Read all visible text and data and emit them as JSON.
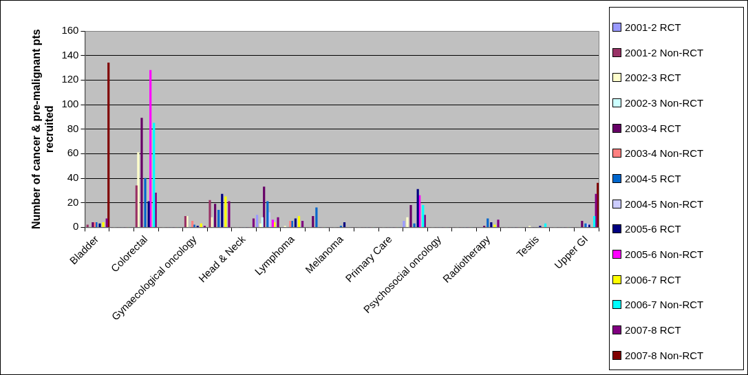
{
  "chart_data": {
    "type": "bar",
    "ylabel": "Number of cancer & pre-malignant pts recruited",
    "categories": [
      "Bladder",
      null,
      "Colorectal",
      null,
      "Gynaecological oncology",
      null,
      "Head & Neck",
      null,
      "Lymphoma",
      null,
      "Melanoma",
      null,
      "Primary Care",
      null,
      "Psychosocial oncology",
      null,
      "Radiotherapy",
      null,
      "Testis",
      null,
      "Upper GI"
    ],
    "series": [
      {
        "name": "2001-2 RCT",
        "color": "#9999ff",
        "values": [
          0,
          0,
          0,
          0,
          0,
          0,
          0,
          10,
          0,
          0,
          0,
          0,
          0,
          5,
          0,
          0,
          0,
          0,
          0,
          0,
          0
        ]
      },
      {
        "name": "2001-2 Non-RCT",
        "color": "#993366",
        "values": [
          2,
          0,
          34,
          0,
          9,
          22,
          0,
          0,
          0,
          0,
          0,
          0,
          0,
          0,
          0,
          0,
          0,
          0,
          0,
          0,
          0
        ]
      },
      {
        "name": "2002-3 RCT",
        "color": "#ffffcc",
        "values": [
          0,
          0,
          61,
          0,
          9,
          8,
          0,
          3,
          1,
          0,
          0,
          0,
          0,
          8,
          0,
          0,
          0,
          0,
          1,
          0,
          0
        ]
      },
      {
        "name": "2002-3 Non-RCT",
        "color": "#ccffff",
        "values": [
          0,
          0,
          0,
          0,
          0,
          0,
          0,
          8,
          0,
          0,
          0,
          0,
          0,
          0,
          0,
          0,
          0,
          0,
          0,
          0,
          0
        ]
      },
      {
        "name": "2003-4 RCT",
        "color": "#660066",
        "values": [
          4,
          0,
          89,
          0,
          0,
          19,
          0,
          33,
          0,
          9,
          0,
          0,
          0,
          18,
          0,
          0,
          1,
          0,
          0,
          0,
          5
        ]
      },
      {
        "name": "2003-4 Non-RCT",
        "color": "#ff8080",
        "values": [
          4,
          0,
          0,
          0,
          5,
          0,
          0,
          0,
          5,
          0,
          0,
          0,
          0,
          0,
          0,
          0,
          0,
          0,
          0,
          0,
          0
        ]
      },
      {
        "name": "2004-5 RCT",
        "color": "#0066cc",
        "values": [
          4,
          0,
          40,
          0,
          2,
          14,
          0,
          21,
          5,
          16,
          1,
          0,
          0,
          3,
          0,
          0,
          7,
          0,
          0,
          0,
          3
        ]
      },
      {
        "name": "2004-5 Non-RCT",
        "color": "#ccccff",
        "values": [
          0,
          0,
          0,
          0,
          0,
          0,
          0,
          12,
          0,
          0,
          0,
          0,
          0,
          0,
          0,
          0,
          0,
          0,
          0,
          0,
          3
        ]
      },
      {
        "name": "2005-6 RCT",
        "color": "#000080",
        "values": [
          3,
          0,
          21,
          0,
          1,
          27,
          0,
          0,
          7,
          0,
          4,
          0,
          0,
          31,
          0,
          0,
          4,
          0,
          1,
          0,
          2
        ]
      },
      {
        "name": "2005-6 Non-RCT",
        "color": "#ff00ff",
        "values": [
          0,
          0,
          128,
          0,
          0,
          0,
          0,
          6,
          0,
          0,
          0,
          0,
          0,
          26,
          0,
          0,
          0,
          0,
          0,
          0,
          0
        ]
      },
      {
        "name": "2006-7 RCT",
        "color": "#ffff00",
        "values": [
          4,
          0,
          0,
          0,
          3,
          25,
          0,
          4,
          9,
          0,
          0,
          0,
          0,
          0,
          0,
          0,
          2,
          0,
          0,
          0,
          0
        ]
      },
      {
        "name": "2006-7 Non-RCT",
        "color": "#00ffff",
        "values": [
          0,
          0,
          85,
          0,
          0,
          0,
          0,
          0,
          0,
          0,
          0,
          0,
          0,
          18,
          0,
          0,
          0,
          0,
          3,
          0,
          9
        ]
      },
      {
        "name": "2007-8 RCT",
        "color": "#800080",
        "values": [
          7,
          0,
          28,
          0,
          1,
          21,
          7,
          8,
          5,
          0,
          0,
          0,
          0,
          10,
          0,
          0,
          6,
          0,
          0,
          0,
          27
        ]
      },
      {
        "name": "2007-8 Non-RCT",
        "color": "#800000",
        "values": [
          134,
          0,
          0,
          0,
          0,
          0,
          0,
          0,
          0,
          0,
          0,
          0,
          0,
          0,
          0,
          0,
          0,
          0,
          0,
          0,
          36
        ]
      }
    ],
    "ylim": [
      0,
      160
    ],
    "yticks": [
      0,
      20,
      40,
      60,
      80,
      100,
      120,
      140,
      160
    ],
    "grid": "y",
    "legend": "right"
  }
}
